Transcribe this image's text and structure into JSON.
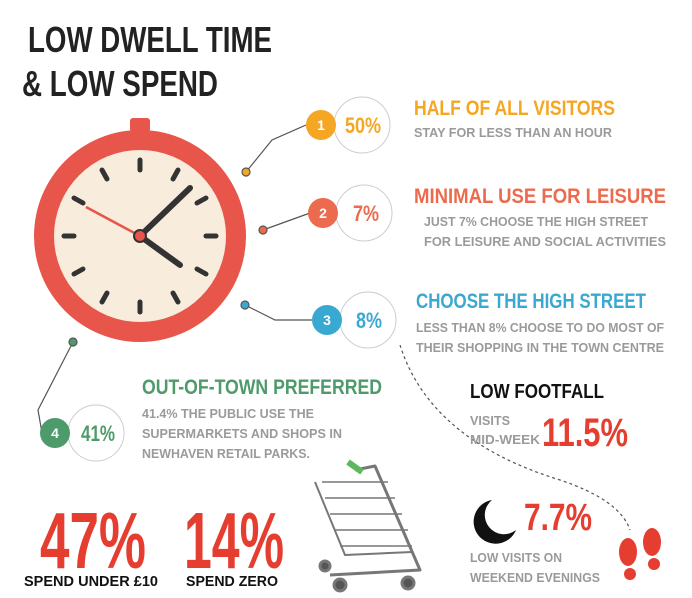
{
  "header": {
    "title": [
      "LOW DWELL TIME",
      "& LOW SPEND"
    ]
  },
  "items": [
    {
      "number": "1",
      "value": "50%",
      "heading": "HALF OF ALL VISITORS",
      "text": [
        "STAY FOR LESS THAN AN HOUR"
      ]
    },
    {
      "number": "2",
      "value": "7%",
      "heading": "MINIMAL USE FOR LEISURE",
      "text": [
        "JUST 7% CHOOSE THE HIGH STREET",
        "FOR LEISURE AND SOCIAL ACTIVITIES"
      ]
    },
    {
      "number": "3",
      "value": "8%",
      "heading": "CHOOSE THE HIGH STREET",
      "text": [
        "LESS THAN 8% CHOOSE TO DO MOST OF",
        "THEIR SHOPPING IN THE TOWN CENTRE"
      ]
    },
    {
      "number": "4",
      "value": "41%",
      "heading": "OUT-OF-TOWN PREFERRED",
      "text": [
        "41.4% THE PUBLIC USE THE",
        "SUPERMARKETS AND SHOPS IN",
        "NEWHAVEN RETAIL PARKS."
      ]
    }
  ],
  "footfall": {
    "heading": "LOW FOOTFALL",
    "label": [
      "VISITS",
      "MID-WEEK"
    ],
    "value": "11.5%"
  },
  "spend": [
    {
      "value": "47%",
      "label": "SPEND UNDER £10"
    },
    {
      "value": "14%",
      "label": "SPEND ZERO"
    }
  ],
  "evening": {
    "value": "7.7%",
    "label": [
      "LOW VISITS ON",
      "WEEKEND EVENINGS"
    ]
  }
}
